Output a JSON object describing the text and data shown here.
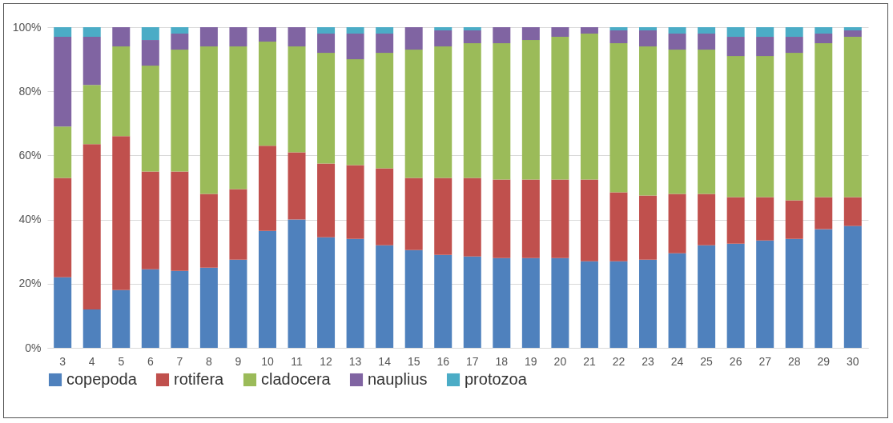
{
  "chart_data": {
    "type": "bar",
    "stacked": true,
    "grid": "y",
    "legend": "bottom",
    "categories": [
      "3",
      "4",
      "5",
      "6",
      "7",
      "8",
      "9",
      "10",
      "11",
      "12",
      "13",
      "14",
      "15",
      "16",
      "17",
      "18",
      "19",
      "20",
      "21",
      "22",
      "23",
      "24",
      "25",
      "26",
      "27",
      "28",
      "29",
      "30"
    ],
    "ylim": [
      0,
      100
    ],
    "yticks": [
      {
        "value": 0,
        "label": "0%"
      },
      {
        "value": 20,
        "label": "20%"
      },
      {
        "value": 40,
        "label": "40%"
      },
      {
        "value": 60,
        "label": "60%"
      },
      {
        "value": 80,
        "label": "80%"
      },
      {
        "value": 100,
        "label": "100%"
      }
    ],
    "series": [
      {
        "name": "copepoda",
        "color": "#4f81bd",
        "values": [
          22,
          12,
          18,
          24.5,
          24,
          25,
          27.5,
          36.5,
          40,
          34.5,
          34,
          32,
          30.5,
          29,
          28.5,
          28,
          28,
          28,
          27,
          27,
          27.5,
          29.5,
          32,
          32.5,
          33.5,
          34,
          37,
          38
        ]
      },
      {
        "name": "rotifera",
        "color": "#c0504d",
        "values": [
          31,
          51.5,
          48,
          30.5,
          31,
          23,
          22,
          26.5,
          21,
          23,
          23,
          24,
          22.5,
          24,
          24.5,
          24.5,
          24.5,
          24.5,
          25.5,
          21.5,
          20,
          18.5,
          16,
          14.5,
          13.5,
          12,
          10,
          9
        ]
      },
      {
        "name": "cladocera",
        "color": "#9bbb59",
        "values": [
          16,
          18.5,
          28,
          33,
          38,
          46,
          44.5,
          32.5,
          33,
          34.5,
          33,
          36,
          40,
          41,
          42,
          42.5,
          43.5,
          44.5,
          45.5,
          46.5,
          46.5,
          45,
          45,
          44,
          44,
          46,
          48,
          50
        ]
      },
      {
        "name": "nauplius",
        "color": "#8064a2",
        "values": [
          28,
          15,
          6,
          8,
          5,
          6,
          6,
          4.5,
          6,
          6,
          8,
          6,
          7,
          5,
          4,
          5,
          4,
          3,
          2,
          4,
          5,
          5,
          5,
          6,
          6,
          5,
          3,
          2
        ]
      },
      {
        "name": "protozoa",
        "color": "#4bacc6",
        "values": [
          3,
          3,
          0,
          4,
          2,
          0,
          0,
          0,
          0,
          2,
          2,
          2,
          0,
          1,
          1,
          0,
          0,
          0,
          0,
          1,
          1,
          2,
          2,
          3,
          3,
          3,
          2,
          1
        ]
      }
    ]
  }
}
